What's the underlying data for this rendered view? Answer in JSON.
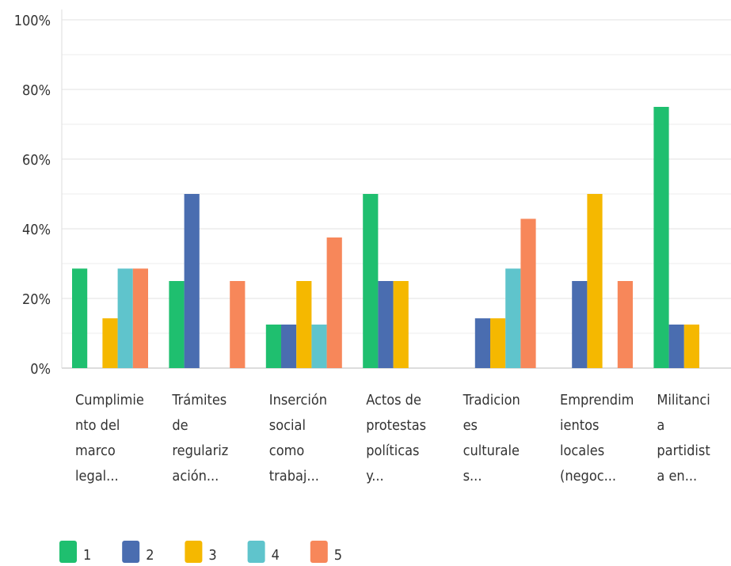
{
  "chart_data": {
    "type": "bar",
    "categories": [
      [
        "Cumplimie",
        "nto del",
        "marco",
        "legal..."
      ],
      [
        "Trámites",
        "de",
        "regulariz",
        "ación..."
      ],
      [
        "Inserción",
        "social",
        "como",
        "trabaj..."
      ],
      [
        "Actos de",
        "protestas",
        "políticas",
        "y..."
      ],
      [
        "Tradicion",
        "es",
        "culturale",
        "s..."
      ],
      [
        "Emprendim",
        "ientos",
        "locales",
        "(negoc..."
      ],
      [
        "Militanci",
        "a",
        "partidist",
        "a en..."
      ]
    ],
    "series": [
      {
        "name": "1",
        "color": "#1fbf6f",
        "values": [
          28.57,
          25,
          12.5,
          50,
          0,
          0,
          75
        ]
      },
      {
        "name": "2",
        "color": "#4a6db0",
        "values": [
          0,
          50,
          12.5,
          25,
          14.29,
          25,
          12.5
        ]
      },
      {
        "name": "3",
        "color": "#f5b800",
        "values": [
          14.29,
          0,
          25,
          25,
          14.29,
          50,
          12.5
        ]
      },
      {
        "name": "4",
        "color": "#5fc4cc",
        "values": [
          28.57,
          0,
          12.5,
          0,
          28.57,
          0,
          0
        ]
      },
      {
        "name": "5",
        "color": "#f7875a",
        "values": [
          28.57,
          25,
          37.5,
          0,
          42.86,
          25,
          0
        ]
      }
    ],
    "ylim": [
      0,
      100
    ],
    "yticks": [
      {
        "value": 0,
        "label": "0%"
      },
      {
        "value": 20,
        "label": "20%"
      },
      {
        "value": 40,
        "label": "40%"
      },
      {
        "value": 60,
        "label": "60%"
      },
      {
        "value": 80,
        "label": "80%"
      },
      {
        "value": 100,
        "label": "100%"
      }
    ],
    "minor_yticks": [
      10,
      30,
      50,
      70,
      90
    ],
    "grid": true,
    "legend": "bottom"
  }
}
